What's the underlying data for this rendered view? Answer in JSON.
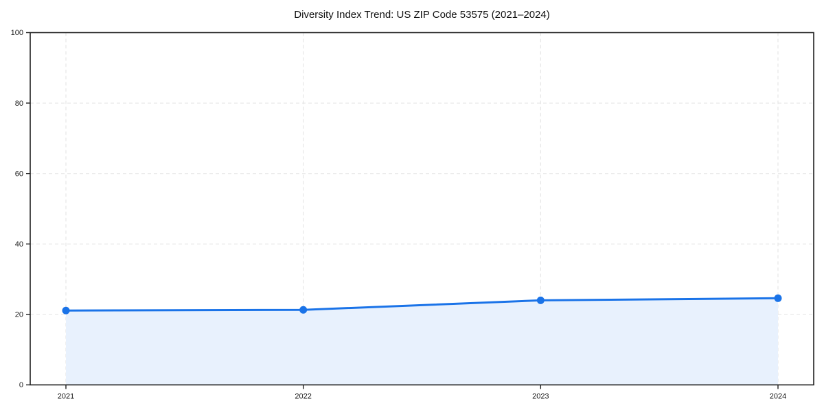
{
  "title": "Diversity Index Trend: US ZIP Code 53575 (2021–2024)",
  "chart_data": {
    "type": "area",
    "title": "Diversity Index Trend: US ZIP Code 53575 (2021–2024)",
    "x": [
      "2021",
      "2022",
      "2023",
      "2024"
    ],
    "series": [
      {
        "name": "Diversity Index",
        "values": [
          21.1,
          21.3,
          24.0,
          24.6
        ]
      }
    ],
    "xlabel": "",
    "ylabel": "",
    "ylim": [
      0,
      100
    ],
    "yticks": [
      0,
      20,
      40,
      60,
      80,
      100
    ],
    "grid": "dashed, both axes",
    "legend": "none",
    "marker": "circle",
    "colors": {
      "line": "#1a73e8",
      "marker": "#1a73e8",
      "area_fill": "#e8f1fd",
      "grid": "#e2e2e2",
      "spine": "#1f1f1f",
      "tick_text": "#1a1a1a",
      "background": "#ffffff"
    }
  }
}
